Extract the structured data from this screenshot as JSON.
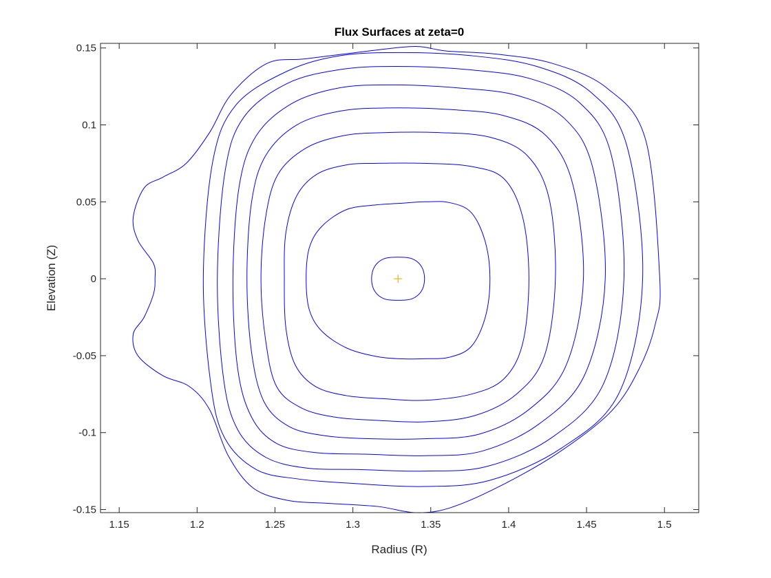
{
  "chart_data": {
    "type": "line",
    "title": "Flux Surfaces at zeta=0",
    "xlabel": "Radius (R)",
    "ylabel": "Elevation (Z)",
    "xlim": [
      1.138,
      1.522
    ],
    "ylim": [
      -0.152,
      0.153
    ],
    "xticks": [
      1.15,
      1.2,
      1.25,
      1.3,
      1.35,
      1.4,
      1.45,
      1.5
    ],
    "xtick_labels": [
      "1.15",
      "1.2",
      "1.25",
      "1.3",
      "1.35",
      "1.4",
      "1.45",
      "1.5"
    ],
    "yticks": [
      -0.15,
      -0.1,
      -0.05,
      0,
      0.05,
      0.1,
      0.15
    ],
    "ytick_labels": [
      "-0.15",
      "-0.1",
      "-0.05",
      "0",
      "0.05",
      "0.1",
      "0.15"
    ],
    "grid": false,
    "line_color": "#0000FF",
    "marker_color": "#EDB120",
    "axis": {
      "center": {
        "x": 1.329,
        "y": 0.0,
        "marker": "+"
      }
    },
    "series": [
      {
        "points": [
          [
            1.346,
            0.0
          ],
          [
            1.344,
            0.008
          ],
          [
            1.338,
            0.013
          ],
          [
            1.329,
            0.014
          ],
          [
            1.32,
            0.013
          ],
          [
            1.314,
            0.008
          ],
          [
            1.312,
            0.0
          ],
          [
            1.314,
            -0.008
          ],
          [
            1.32,
            -0.013
          ],
          [
            1.329,
            -0.014
          ],
          [
            1.338,
            -0.013
          ],
          [
            1.344,
            -0.008
          ]
        ]
      },
      {
        "points": [
          [
            1.388,
            0.0
          ],
          [
            1.385,
            0.024
          ],
          [
            1.376,
            0.043
          ],
          [
            1.362,
            0.0495
          ],
          [
            1.346,
            0.05
          ],
          [
            1.33,
            0.049
          ],
          [
            1.315,
            0.048
          ],
          [
            1.296,
            0.045
          ],
          [
            1.28,
            0.034
          ],
          [
            1.272,
            0.02
          ],
          [
            1.27,
            0.0
          ],
          [
            1.272,
            -0.02
          ],
          [
            1.28,
            -0.034
          ],
          [
            1.296,
            -0.045
          ],
          [
            1.315,
            -0.0505
          ],
          [
            1.33,
            -0.052
          ],
          [
            1.346,
            -0.052
          ],
          [
            1.362,
            -0.051
          ],
          [
            1.376,
            -0.044
          ],
          [
            1.385,
            -0.025
          ]
        ]
      },
      {
        "points": [
          [
            1.413,
            0.0
          ],
          [
            1.409,
            0.04
          ],
          [
            1.397,
            0.065
          ],
          [
            1.376,
            0.073
          ],
          [
            1.346,
            0.075
          ],
          [
            1.315,
            0.075
          ],
          [
            1.296,
            0.074
          ],
          [
            1.277,
            0.068
          ],
          [
            1.264,
            0.054
          ],
          [
            1.257,
            0.03
          ],
          [
            1.256,
            0.0
          ],
          [
            1.257,
            -0.032
          ],
          [
            1.263,
            -0.056
          ],
          [
            1.276,
            -0.07
          ],
          [
            1.296,
            -0.076
          ],
          [
            1.32,
            -0.078
          ],
          [
            1.346,
            -0.079
          ],
          [
            1.376,
            -0.075
          ],
          [
            1.397,
            -0.065
          ],
          [
            1.409,
            -0.042
          ]
        ]
      },
      {
        "points": [
          [
            1.43,
            0.0
          ],
          [
            1.426,
            0.052
          ],
          [
            1.412,
            0.08
          ],
          [
            1.388,
            0.092
          ],
          [
            1.356,
            0.095
          ],
          [
            1.32,
            0.095
          ],
          [
            1.294,
            0.093
          ],
          [
            1.27,
            0.085
          ],
          [
            1.252,
            0.068
          ],
          [
            1.244,
            0.04
          ],
          [
            1.241,
            0.0
          ],
          [
            1.244,
            -0.04
          ],
          [
            1.251,
            -0.07
          ],
          [
            1.267,
            -0.084
          ],
          [
            1.289,
            -0.09
          ],
          [
            1.315,
            -0.092
          ],
          [
            1.346,
            -0.093
          ],
          [
            1.378,
            -0.089
          ],
          [
            1.405,
            -0.075
          ],
          [
            1.423,
            -0.05
          ]
        ]
      },
      {
        "points": [
          [
            1.448,
            0.0
          ],
          [
            1.441,
            0.062
          ],
          [
            1.424,
            0.093
          ],
          [
            1.397,
            0.106
          ],
          [
            1.362,
            0.11
          ],
          [
            1.322,
            0.111
          ],
          [
            1.292,
            0.109
          ],
          [
            1.264,
            0.1
          ],
          [
            1.244,
            0.08
          ],
          [
            1.235,
            0.05
          ],
          [
            1.232,
            0.0
          ],
          [
            1.235,
            -0.048
          ],
          [
            1.243,
            -0.08
          ],
          [
            1.259,
            -0.096
          ],
          [
            1.282,
            -0.102
          ],
          [
            1.312,
            -0.104
          ],
          [
            1.346,
            -0.104
          ],
          [
            1.381,
            -0.101
          ],
          [
            1.413,
            -0.085
          ],
          [
            1.437,
            -0.056
          ]
        ]
      },
      {
        "points": [
          [
            1.462,
            0.0
          ],
          [
            1.454,
            0.072
          ],
          [
            1.436,
            0.104
          ],
          [
            1.406,
            0.119
          ],
          [
            1.368,
            0.124
          ],
          [
            1.325,
            0.126
          ],
          [
            1.291,
            0.124
          ],
          [
            1.261,
            0.114
          ],
          [
            1.238,
            0.093
          ],
          [
            1.227,
            0.06
          ],
          [
            1.223,
            0.0
          ],
          [
            1.226,
            -0.058
          ],
          [
            1.235,
            -0.09
          ],
          [
            1.251,
            -0.107
          ],
          [
            1.276,
            -0.113
          ],
          [
            1.308,
            -0.114
          ],
          [
            1.346,
            -0.115
          ],
          [
            1.383,
            -0.112
          ],
          [
            1.42,
            -0.094
          ],
          [
            1.449,
            -0.062
          ]
        ]
      },
      {
        "points": [
          [
            1.474,
            0.0
          ],
          [
            1.466,
            0.08
          ],
          [
            1.446,
            0.114
          ],
          [
            1.414,
            0.13
          ],
          [
            1.373,
            0.136
          ],
          [
            1.328,
            0.138
          ],
          [
            1.292,
            0.136
          ],
          [
            1.258,
            0.127
          ],
          [
            1.23,
            0.105
          ],
          [
            1.218,
            0.07
          ],
          [
            1.213,
            0.0
          ],
          [
            1.217,
            -0.065
          ],
          [
            1.226,
            -0.098
          ],
          [
            1.244,
            -0.116
          ],
          [
            1.27,
            -0.123
          ],
          [
            1.304,
            -0.124
          ],
          [
            1.346,
            -0.125
          ],
          [
            1.386,
            -0.122
          ],
          [
            1.428,
            -0.103
          ],
          [
            1.461,
            -0.068
          ]
        ]
      },
      {
        "points": [
          [
            1.486,
            0.0
          ],
          [
            1.476,
            0.086
          ],
          [
            1.453,
            0.121
          ],
          [
            1.418,
            0.138
          ],
          [
            1.376,
            0.145
          ],
          [
            1.331,
            0.147
          ],
          [
            1.292,
            0.145
          ],
          [
            1.258,
            0.135
          ],
          [
            1.225,
            0.113
          ],
          [
            1.21,
            0.076
          ],
          [
            1.204,
            0.0
          ],
          [
            1.209,
            -0.07
          ],
          [
            1.218,
            -0.104
          ],
          [
            1.238,
            -0.124
          ],
          [
            1.264,
            -0.13
          ],
          [
            1.3,
            -0.133
          ],
          [
            1.346,
            -0.135
          ],
          [
            1.388,
            -0.131
          ],
          [
            1.434,
            -0.11
          ],
          [
            1.471,
            -0.074
          ]
        ]
      },
      {
        "points": [
          [
            1.497,
            0.0
          ],
          [
            1.488,
            0.09
          ],
          [
            1.463,
            0.124
          ],
          [
            1.428,
            0.14
          ],
          [
            1.392,
            0.146
          ],
          [
            1.36,
            0.148
          ],
          [
            1.34,
            0.151
          ],
          [
            1.31,
            0.148
          ],
          [
            1.27,
            0.143
          ],
          [
            1.245,
            0.14
          ],
          [
            1.222,
            0.12
          ],
          [
            1.208,
            0.095
          ],
          [
            1.193,
            0.075
          ],
          [
            1.178,
            0.066
          ],
          [
            1.166,
            0.059
          ],
          [
            1.159,
            0.04
          ],
          [
            1.162,
            0.025
          ],
          [
            1.172,
            0.01
          ],
          [
            1.173,
            0.0
          ],
          [
            1.172,
            -0.01
          ],
          [
            1.166,
            -0.025
          ],
          [
            1.159,
            -0.036
          ],
          [
            1.162,
            -0.05
          ],
          [
            1.178,
            -0.063
          ],
          [
            1.195,
            -0.07
          ],
          [
            1.208,
            -0.085
          ],
          [
            1.22,
            -0.115
          ],
          [
            1.236,
            -0.136
          ],
          [
            1.258,
            -0.144
          ],
          [
            1.285,
            -0.146
          ],
          [
            1.316,
            -0.148
          ],
          [
            1.34,
            -0.152
          ],
          [
            1.362,
            -0.149
          ],
          [
            1.394,
            -0.135
          ],
          [
            1.432,
            -0.113
          ],
          [
            1.466,
            -0.086
          ],
          [
            1.484,
            -0.058
          ],
          [
            1.494,
            -0.03
          ]
        ]
      }
    ]
  }
}
